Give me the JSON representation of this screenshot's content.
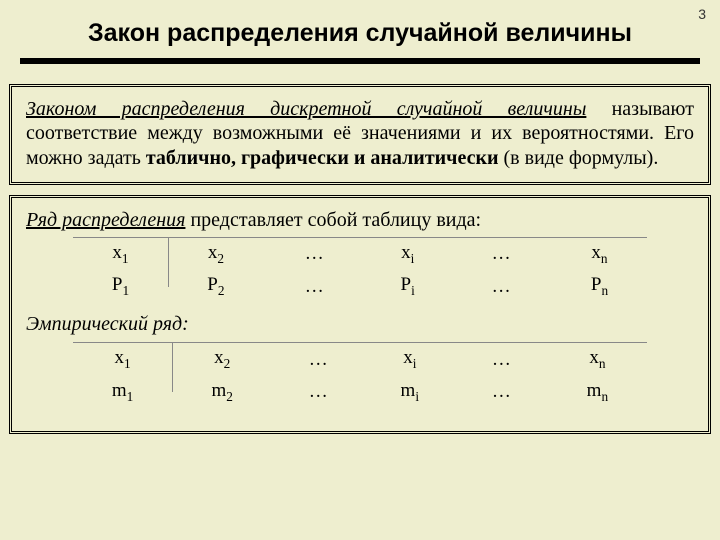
{
  "page_number": "3",
  "title": "Закон распределения случайной величины",
  "box1_p1_a": "Законом распределения дискретной случайной величины",
  "box1_p1_b": " называют соответствие между возможными её значениями и их вероятностями. Его можно задать ",
  "box1_p1_c": "таблично, графически и аналитически",
  "box1_p1_d": " (в виде формулы).",
  "box2_lead_a": "Ряд распределения",
  "box2_lead_b": " представляет собой таблицу вида:",
  "row1": {
    "c1": "x",
    "s1": "1",
    "c2": "x",
    "s2": "2",
    "c3": "…",
    "c4": "x",
    "s4": "i",
    "c5": "…",
    "c6": "x",
    "s6": "n"
  },
  "row2": {
    "c1": "P",
    "s1": "1",
    "c2": "P",
    "s2": "2",
    "c3": "…",
    "c4": "P",
    "s4": "i",
    "c5": "…",
    "c6": "P",
    "s6": "n"
  },
  "box2_lead2": "Эмпирический ряд:",
  "row3": {
    "c1": "x",
    "s1": "1",
    "c2": "x",
    "s2": "2",
    "c3": "…",
    "c4": "x",
    "s4": "i",
    "c5": "…",
    "c6": "x",
    "s6": "n"
  },
  "row4": {
    "c1": "m",
    "s1": "1",
    "c2": "m",
    "s2": "2",
    "c3": "…",
    "c4": "m",
    "s4": "i",
    "c5": "…",
    "c6": "m",
    "s6": "n"
  }
}
